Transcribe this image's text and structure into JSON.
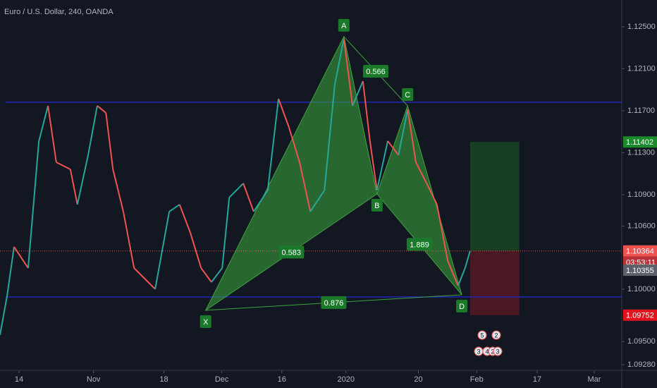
{
  "chart_data": {
    "type": "line",
    "title": "Euro / U.S. Dollar, 240, OANDA",
    "x": [
      -4.6,
      -2.9,
      -1.2,
      2.2,
      4.8,
      7.0,
      9.0,
      12.4,
      14.1,
      16.7,
      18.9,
      21.0,
      22.7,
      25.2,
      27.8,
      31.2,
      32.9,
      36.3,
      38.8,
      41.4,
      44.0,
      46.5,
      49.1,
      50.8,
      54.2,
      56.7,
      60.1,
      62.7,
      65.2,
      67.8,
      70.4,
      73.8,
      76.3,
      78.5,
      80.6,
      83.1,
      84.8,
      86.5,
      89.1,
      91.7,
      93.9,
      95.9,
      98.5,
      101.0,
      103.6,
      106.1,
      107.8,
      109.0
    ],
    "values": [
      1.09563,
      1.09933,
      1.10403,
      1.10201,
      1.11411,
      1.11747,
      1.11209,
      1.11142,
      1.10806,
      1.11277,
      1.11747,
      1.1168,
      1.11142,
      1.10739,
      1.10201,
      1.10067,
      1.1,
      1.10739,
      1.10806,
      1.10537,
      1.10201,
      1.10067,
      1.10201,
      1.10873,
      1.11008,
      1.10739,
      1.10941,
      1.11814,
      1.11545,
      1.11209,
      1.10739,
      1.10941,
      1.11949,
      1.12385,
      1.11747,
      1.11982,
      1.11411,
      1.10941,
      1.11411,
      1.11277,
      1.11713,
      1.11209,
      1.11008,
      1.10806,
      1.10269,
      1.10033,
      1.10201,
      1.10364
    ],
    "color_up": "#26a69a",
    "color_down": "#ef5350",
    "xlim": [
      -4.6,
      145.65
    ],
    "ylim": [
      1.09226,
      1.12755
    ],
    "xticks": [
      {
        "value": 0,
        "label": "14"
      },
      {
        "value": 18,
        "label": "Nov"
      },
      {
        "value": 35,
        "label": "18"
      },
      {
        "value": 49,
        "label": "Dec"
      },
      {
        "value": 63.5,
        "label": "16"
      },
      {
        "value": 79,
        "label": "2020"
      },
      {
        "value": 96.5,
        "label": "20"
      },
      {
        "value": 110.6,
        "label": "Feb"
      },
      {
        "value": 125.2,
        "label": "17"
      },
      {
        "value": 139,
        "label": "Mar"
      }
    ],
    "yticks": [
      {
        "value": 1.125,
        "label": "1.12500"
      },
      {
        "value": 1.121,
        "label": "1.12100"
      },
      {
        "value": 1.117,
        "label": "1.11700"
      },
      {
        "value": 1.113,
        "label": "1.11300"
      },
      {
        "value": 1.109,
        "label": "1.10900"
      },
      {
        "value": 1.106,
        "label": "1.10600"
      },
      {
        "value": 1.1,
        "label": "1.10000"
      },
      {
        "value": 1.095,
        "label": "1.09500"
      },
      {
        "value": 1.0928,
        "label": "1.09280"
      }
    ],
    "hlines": {
      "color": "#2127b8",
      "values": [
        1.11781,
        1.09926
      ]
    },
    "pattern": {
      "color": "#3fa33f",
      "points": [
        {
          "label": "X",
          "x": 45.1,
          "y": 1.09798
        },
        {
          "label": "A",
          "x": 78.5,
          "y": 1.12406
        },
        {
          "label": "B",
          "x": 86.5,
          "y": 1.10907
        },
        {
          "label": "C",
          "x": 93.9,
          "y": 1.11747
        },
        {
          "label": "D",
          "x": 107.0,
          "y": 1.09946
        }
      ],
      "ratios": [
        0.583,
        0.566,
        1.889,
        0.876
      ]
    },
    "position": {
      "x": [
        109.0,
        120.9
      ],
      "entry": 1.10364,
      "target": 1.11402,
      "stop": 1.09752
    },
    "price_labels": [
      {
        "value": 1.11402,
        "color": "#1b8a2a"
      },
      {
        "value": 1.10364,
        "color": "#ef5350"
      },
      {
        "value": 1.10355,
        "color": "#5d606b"
      },
      {
        "value": 1.09752,
        "color": "#e0141e"
      }
    ],
    "countdown": "03:53:11",
    "events": [
      "5",
      "2",
      "3",
      "4",
      "2",
      "3"
    ]
  }
}
